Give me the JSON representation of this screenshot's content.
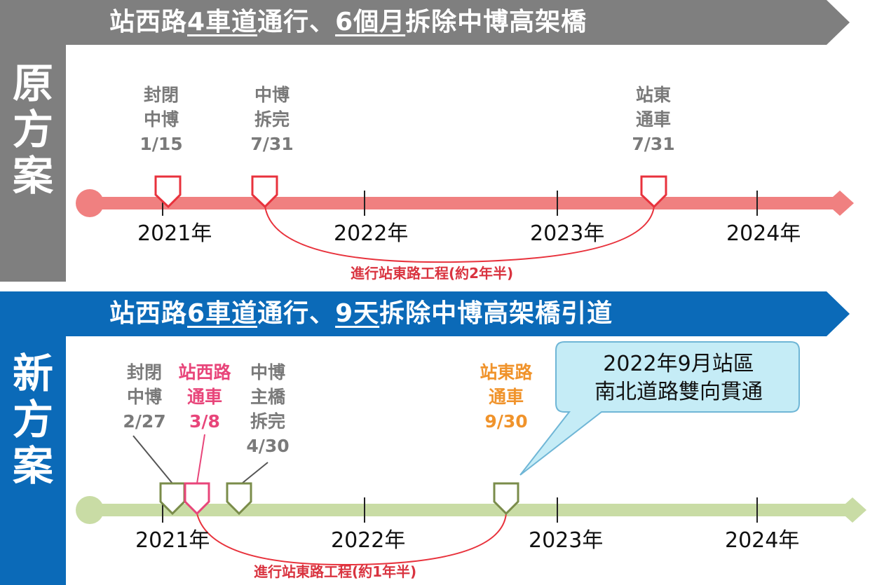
{
  "original_plan": {
    "side_label": [
      "原",
      "方",
      "案"
    ],
    "banner": {
      "p1": "站西路",
      "p2": "4車道",
      "p3": "通行、",
      "p4": "6個月",
      "p5": "拆除中博高架橋"
    },
    "milestones": [
      {
        "lines": [
          "封閉",
          "中博",
          "1/15"
        ]
      },
      {
        "lines": [
          "中博",
          "拆完",
          "7/31"
        ]
      },
      {
        "lines": [
          "站東",
          "通車",
          "7/31"
        ]
      }
    ],
    "years": [
      "2021年",
      "2022年",
      "2023年",
      "2024年"
    ],
    "arc_label": "進行站東路工程(約2年半)"
  },
  "new_plan": {
    "side_label": [
      "新",
      "方",
      "案"
    ],
    "banner": {
      "p1": "站西路",
      "p2": "6車道",
      "p3": "通行、",
      "p4": "9天",
      "p5": "拆除中博高架橋引道"
    },
    "milestones": [
      {
        "lines": [
          "封閉",
          "中博",
          "2/27"
        ]
      },
      {
        "lines": [
          "站西路",
          "通車",
          "3/8"
        ]
      },
      {
        "lines": [
          "中博",
          "主橋",
          "拆完",
          "4/30"
        ]
      },
      {
        "lines": [
          "站東路",
          "通車",
          "9/30"
        ]
      }
    ],
    "years": [
      "2021年",
      "2022年",
      "2023年",
      "2024年"
    ],
    "arc_label": "進行站東路工程(約1年半)",
    "callout": [
      "2022年9月站區",
      "南北道路雙向貫通"
    ]
  },
  "colors": {
    "gray_banner": "#7f7f7f",
    "blue_banner": "#0b6ab8",
    "red_line": "#f08080",
    "red_marker": "#e8323c",
    "green_line": "#c9dca5",
    "green_marker": "#7a8c4a",
    "pink": "#e8457a",
    "orange": "#f0932b",
    "gray_text": "#7a7a7a",
    "callout_fill": "#c5ecf6"
  }
}
